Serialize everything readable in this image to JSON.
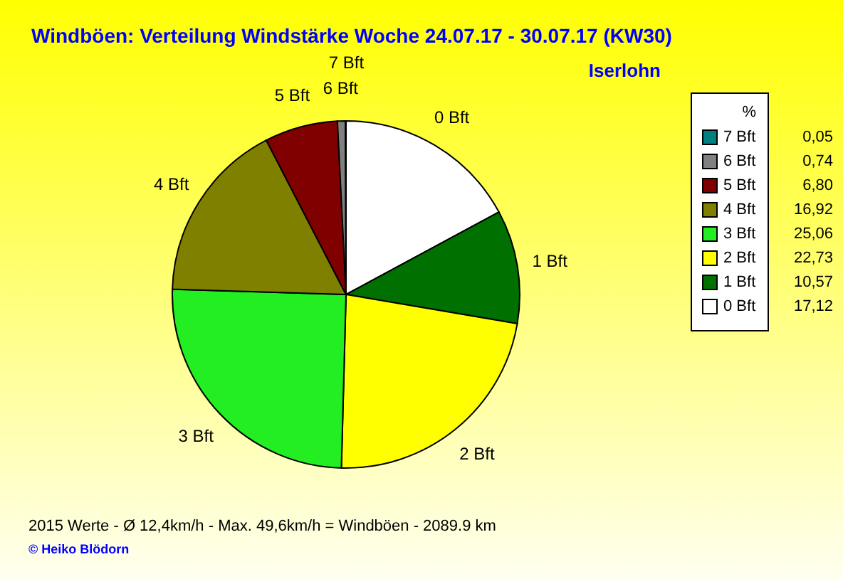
{
  "chart_data": {
    "type": "pie",
    "title": "Windböen: Verteilung Windstärke  Woche 24.07.17 - 30.07.17 (KW30)",
    "subtitle": "Iserlohn",
    "legend_title": "%",
    "legend": "top right",
    "categories": [
      "0 Bft",
      "1 Bft",
      "2 Bft",
      "3 Bft",
      "4 Bft",
      "5 Bft",
      "6 Bft",
      "7 Bft"
    ],
    "values": [
      17.12,
      10.57,
      22.73,
      25.06,
      16.92,
      6.8,
      0.74,
      0.05
    ],
    "value_labels": [
      "17,12",
      "10,57",
      "22,73",
      "25,06",
      "16,92",
      "6,80",
      "0,74",
      "0,05"
    ],
    "colors": [
      "#ffffff",
      "#007000",
      "#ffff00",
      "#22ee22",
      "#808000",
      "#800000",
      "#808080",
      "#008080"
    ],
    "annotations": [
      "2015 Werte   -  Ø 12,4km/h  -  Max. 49,6km/h = Windböen   -   2089.9 km",
      "© Heiko Blödorn"
    ]
  }
}
